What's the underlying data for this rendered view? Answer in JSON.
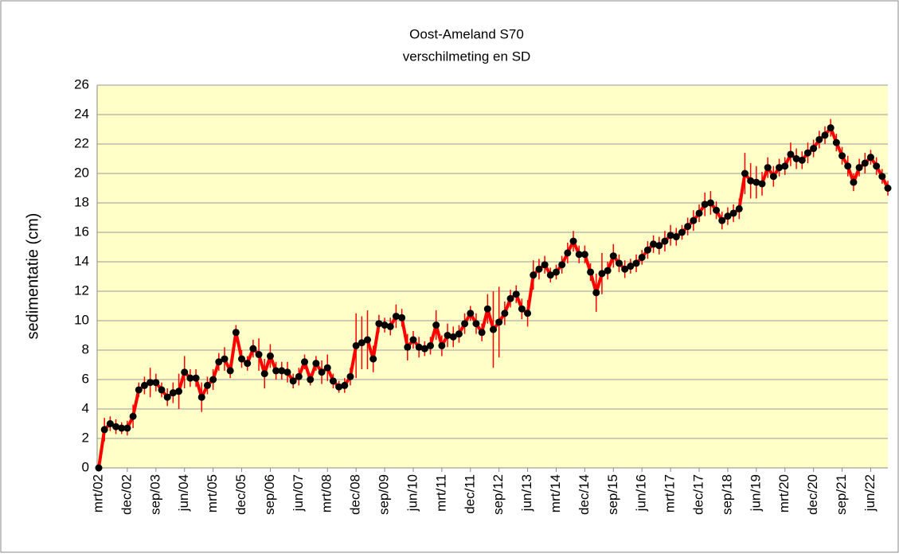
{
  "chart_data": {
    "type": "line",
    "title": "Oost-Ameland S70",
    "subtitle": "verschilmeting en SD",
    "y_label": "sedimentatie (cm)",
    "categories": [
      "mrt/02",
      null,
      null,
      null,
      null,
      "dec/02",
      null,
      null,
      null,
      null,
      "sep/03",
      null,
      null,
      null,
      null,
      "jun/04",
      null,
      null,
      null,
      null,
      "mrt/05",
      null,
      null,
      null,
      null,
      "dec/05",
      null,
      null,
      null,
      null,
      "sep/06",
      null,
      null,
      null,
      null,
      "jun/07",
      null,
      null,
      null,
      null,
      "mrt/08",
      null,
      null,
      null,
      null,
      "dec/08",
      null,
      null,
      null,
      null,
      "sep/09",
      null,
      null,
      null,
      null,
      "jun/10",
      null,
      null,
      null,
      null,
      "mrt/11",
      null,
      null,
      null,
      null,
      "dec/11",
      null,
      null,
      null,
      null,
      "sep/12",
      null,
      null,
      null,
      null,
      "jun/13",
      null,
      null,
      null,
      null,
      "mrt/14",
      null,
      null,
      null,
      null,
      "dec/14",
      null,
      null,
      null,
      null,
      "sep/15",
      null,
      null,
      null,
      null,
      "jun/16",
      null,
      null,
      null,
      null,
      "mrt/17",
      null,
      null,
      null,
      null,
      "dec/17",
      null,
      null,
      null,
      null,
      "sep/18",
      null,
      null,
      null,
      null,
      "jun/19",
      null,
      null,
      null,
      null,
      "mrt/20",
      null,
      null,
      null,
      null,
      "dec/20",
      null,
      null,
      null,
      null,
      "sep/21",
      null,
      null,
      null,
      null,
      "jun/22",
      null,
      null,
      null
    ],
    "values": [
      0,
      2.6,
      3.0,
      2.8,
      2.7,
      2.7,
      3.5,
      5.3,
      5.6,
      5.8,
      5.8,
      5.3,
      4.8,
      5.1,
      5.2,
      6.5,
      6.1,
      6.1,
      4.8,
      5.6,
      6.0,
      7.2,
      7.4,
      6.6,
      9.2,
      7.4,
      7.1,
      8.1,
      7.7,
      6.4,
      7.6,
      6.6,
      6.6,
      6.5,
      5.9,
      6.2,
      7.2,
      6.0,
      7.1,
      6.5,
      6.8,
      5.9,
      5.5,
      5.6,
      6.2,
      8.3,
      8.5,
      8.7,
      7.4,
      9.8,
      9.7,
      9.6,
      10.3,
      10.2,
      8.2,
      8.7,
      8.2,
      8.1,
      8.3,
      9.7,
      8.3,
      9.0,
      8.9,
      9.1,
      9.8,
      10.5,
      9.8,
      9.2,
      10.8,
      9.4,
      9.9,
      10.5,
      11.5,
      11.8,
      10.8,
      10.5,
      13.1,
      13.5,
      13.8,
      13.1,
      13.3,
      13.8,
      14.6,
      15.4,
      14.5,
      14.5,
      13.3,
      11.9,
      13.2,
      13.4,
      14.4,
      13.9,
      13.5,
      13.7,
      13.9,
      14.3,
      14.8,
      15.2,
      15.1,
      15.4,
      15.8,
      15.7,
      16.0,
      16.4,
      16.8,
      17.3,
      17.9,
      18.0,
      17.5,
      16.8,
      17.1,
      17.3,
      17.6,
      20.0,
      19.5,
      19.4,
      19.3,
      20.4,
      19.8,
      20.4,
      20.5,
      21.3,
      21.0,
      20.9,
      21.4,
      21.7,
      22.3,
      22.6,
      23.1,
      22.1,
      21.2,
      20.5,
      19.4,
      20.4,
      20.7,
      21.1,
      20.5,
      19.8,
      19.0
    ],
    "errors": [
      0,
      0.8,
      0.5,
      0.5,
      0.4,
      0.5,
      0.8,
      0.5,
      0.6,
      1.0,
      0.6,
      0.5,
      0.6,
      0.7,
      1.2,
      1.1,
      0.6,
      0.6,
      1.0,
      0.6,
      0.7,
      0.6,
      0.8,
      0.5,
      0.5,
      0.6,
      0.5,
      0.6,
      1.1,
      1.0,
      0.8,
      0.6,
      0.6,
      0.7,
      0.5,
      0.6,
      0.5,
      0.4,
      0.5,
      0.8,
      0.9,
      0.5,
      0.4,
      0.5,
      0.6,
      2.2,
      1.8,
      2.0,
      0.9,
      0.6,
      0.5,
      0.6,
      0.8,
      0.6,
      0.9,
      0.6,
      0.7,
      0.5,
      0.6,
      1.0,
      0.7,
      0.8,
      0.7,
      0.6,
      0.7,
      0.5,
      0.7,
      0.6,
      1.0,
      2.6,
      2.4,
      0.8,
      0.6,
      0.6,
      0.7,
      0.9,
      1.0,
      0.7,
      0.6,
      0.5,
      0.5,
      0.6,
      0.7,
      0.7,
      0.6,
      0.6,
      0.6,
      1.3,
      1.4,
      0.6,
      0.8,
      0.6,
      0.6,
      0.5,
      0.6,
      0.5,
      0.6,
      0.6,
      0.6,
      0.7,
      0.7,
      0.6,
      0.5,
      0.6,
      0.7,
      0.6,
      0.8,
      0.8,
      0.6,
      0.6,
      0.6,
      0.6,
      0.7,
      1.4,
      1.2,
      1.1,
      0.8,
      0.7,
      0.7,
      0.6,
      0.6,
      0.8,
      0.7,
      0.6,
      0.7,
      0.6,
      0.6,
      0.6,
      0.6,
      0.6,
      0.6,
      0.7,
      0.6,
      0.6,
      0.7,
      0.5,
      0.6,
      0.5,
      0.5
    ],
    "color": "#ff0000",
    "marker_color": "#000000",
    "ylim": [
      0,
      26
    ],
    "yticks": [
      0,
      2,
      4,
      6,
      8,
      10,
      12,
      14,
      16,
      18,
      20,
      22,
      24,
      26
    ],
    "grid": true
  }
}
